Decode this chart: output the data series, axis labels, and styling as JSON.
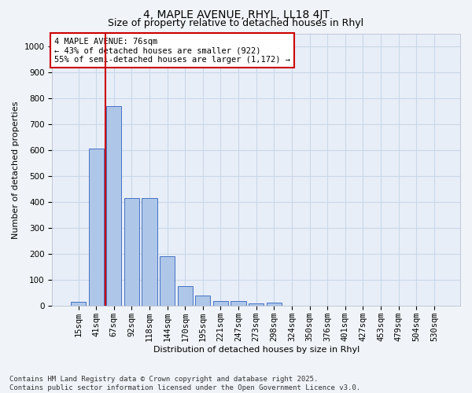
{
  "title": "4, MAPLE AVENUE, RHYL, LL18 4JT",
  "subtitle": "Size of property relative to detached houses in Rhyl",
  "xlabel": "Distribution of detached houses by size in Rhyl",
  "ylabel": "Number of detached properties",
  "categories": [
    "15sqm",
    "41sqm",
    "67sqm",
    "92sqm",
    "118sqm",
    "144sqm",
    "170sqm",
    "195sqm",
    "221sqm",
    "247sqm",
    "273sqm",
    "298sqm",
    "324sqm",
    "350sqm",
    "376sqm",
    "401sqm",
    "427sqm",
    "453sqm",
    "479sqm",
    "504sqm",
    "530sqm"
  ],
  "values": [
    15,
    605,
    770,
    415,
    415,
    193,
    78,
    40,
    18,
    18,
    10,
    13,
    0,
    0,
    0,
    0,
    0,
    0,
    0,
    0,
    0
  ],
  "bar_color": "#aec6e8",
  "bar_edge_color": "#4472c4",
  "red_line_x": 1.5,
  "annotation_title": "4 MAPLE AVENUE: 76sqm",
  "annotation_line1": "← 43% of detached houses are smaller (922)",
  "annotation_line2": "55% of semi-detached houses are larger (1,172) →",
  "annotation_box_color": "#ffffff",
  "annotation_box_edge": "#cc0000",
  "red_line_color": "#cc0000",
  "ylim": [
    0,
    1050
  ],
  "yticks": [
    0,
    100,
    200,
    300,
    400,
    500,
    600,
    700,
    800,
    900,
    1000
  ],
  "grid_color": "#c8d8e8",
  "bg_color": "#e8eef8",
  "fig_bg_color": "#f0f4f8",
  "footer1": "Contains HM Land Registry data © Crown copyright and database right 2025.",
  "footer2": "Contains public sector information licensed under the Open Government Licence v3.0.",
  "title_fontsize": 10,
  "subtitle_fontsize": 9,
  "axis_label_fontsize": 8,
  "tick_fontsize": 7.5,
  "footer_fontsize": 6.5,
  "annot_fontsize": 7.5
}
